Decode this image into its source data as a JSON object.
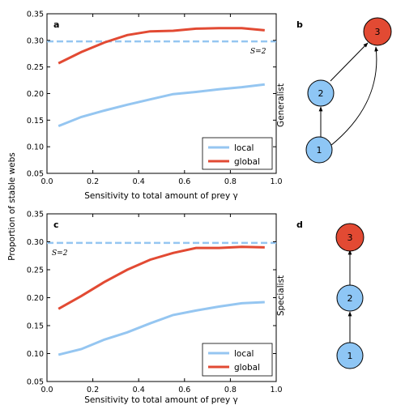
{
  "shared": {
    "ylabel": "Proportion of stable webs",
    "xlabel": "Sensitivity to total amount of prey γ",
    "yticks": [
      "0.05",
      "0.10",
      "0.15",
      "0.20",
      "0.25",
      "0.30",
      "0.35"
    ],
    "xticks": [
      "0.0",
      "0.2",
      "0.4",
      "0.6",
      "0.8",
      "1.0"
    ]
  },
  "colors": {
    "local": "#95c6f1",
    "global": "#e24a33",
    "node_blue": "#8ec6f5",
    "node_red": "#e24a33"
  },
  "chart_data": [
    {
      "type": "line",
      "panel": "a",
      "side_label": "Generalist",
      "xlim": [
        0.0,
        1.0
      ],
      "ylim": [
        0.05,
        0.35
      ],
      "x": [
        0.05,
        0.15,
        0.25,
        0.35,
        0.45,
        0.55,
        0.65,
        0.75,
        0.85,
        0.95
      ],
      "series": [
        {
          "name": "local",
          "values": [
            0.139,
            0.156,
            0.168,
            0.179,
            0.189,
            0.199,
            0.203,
            0.208,
            0.212,
            0.217
          ]
        },
        {
          "name": "global",
          "values": [
            0.257,
            0.278,
            0.296,
            0.31,
            0.317,
            0.318,
            0.322,
            0.323,
            0.323,
            0.319
          ]
        }
      ],
      "reference": {
        "y": 0.298,
        "label": "S=2",
        "label_position": "right"
      },
      "legend": {
        "position": "lower-right",
        "entries": [
          "local",
          "global"
        ]
      }
    },
    {
      "type": "line",
      "panel": "c",
      "side_label": "Specialist",
      "xlim": [
        0.0,
        1.0
      ],
      "ylim": [
        0.05,
        0.35
      ],
      "x": [
        0.05,
        0.15,
        0.25,
        0.35,
        0.45,
        0.55,
        0.65,
        0.75,
        0.85,
        0.95
      ],
      "series": [
        {
          "name": "local",
          "values": [
            0.098,
            0.108,
            0.125,
            0.138,
            0.154,
            0.169,
            0.177,
            0.184,
            0.19,
            0.192
          ]
        },
        {
          "name": "global",
          "values": [
            0.18,
            0.203,
            0.228,
            0.25,
            0.268,
            0.28,
            0.289,
            0.289,
            0.291,
            0.29
          ]
        }
      ],
      "reference": {
        "y": 0.298,
        "label": "S=2",
        "label_position": "left"
      },
      "legend": {
        "position": "lower-right",
        "entries": [
          "local",
          "global"
        ]
      }
    }
  ],
  "diagrams": [
    {
      "panel": "b",
      "nodes": [
        "1",
        "2",
        "3"
      ],
      "top_node_color": "red"
    },
    {
      "panel": "d",
      "nodes": [
        "1",
        "2",
        "3"
      ],
      "top_node_color": "red"
    }
  ]
}
